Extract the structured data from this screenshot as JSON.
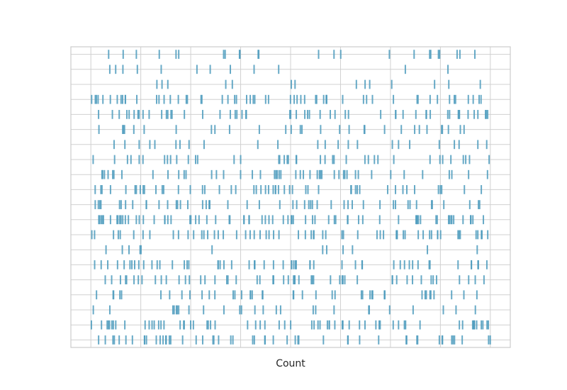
{
  "chart_data": {
    "type": "eventplot",
    "title": "",
    "xlabel": "Count",
    "ylabel": "",
    "xlim": [
      -0.4,
      8.4
    ],
    "ylim": [
      -0.5,
      19.5
    ],
    "x_gridlines": [
      0,
      1,
      2,
      3,
      4,
      5,
      6,
      7,
      8
    ],
    "n_rows": 20,
    "grid": true,
    "show_tick_labels": false,
    "mark_color": "#4c9bbd",
    "grid_color": "#d0d0d0",
    "frame_color": "#cccccc",
    "seed": 20240611,
    "events_per_row": [
      24,
      12,
      14,
      58,
      54,
      30,
      24,
      40,
      46,
      50,
      48,
      72,
      60,
      12,
      54,
      52,
      42,
      26,
      64,
      52
    ]
  }
}
